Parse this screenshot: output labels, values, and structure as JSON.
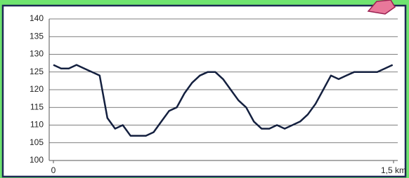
{
  "chart_data": {
    "type": "line",
    "x": [
      0,
      0.034,
      0.068,
      0.102,
      0.136,
      0.17,
      0.204,
      0.238,
      0.272,
      0.306,
      0.34,
      0.374,
      0.408,
      0.442,
      0.476,
      0.51,
      0.544,
      0.578,
      0.612,
      0.646,
      0.68,
      0.714,
      0.748,
      0.782,
      0.816,
      0.85,
      0.884,
      0.918,
      0.952,
      0.986,
      1.02,
      1.054,
      1.088,
      1.122,
      1.156,
      1.19,
      1.224,
      1.258,
      1.292,
      1.326,
      1.36,
      1.394,
      1.428,
      1.462,
      1.496
    ],
    "values": [
      127,
      126,
      126,
      127,
      126,
      125,
      124,
      112,
      109,
      110,
      107,
      107,
      107,
      108,
      111,
      114,
      115,
      119,
      122,
      124,
      125,
      125,
      123,
      120,
      117,
      115,
      111,
      109,
      109,
      110,
      109,
      110,
      111,
      113,
      116,
      120,
      124,
      123,
      124,
      125,
      125,
      125,
      125,
      126,
      127
    ],
    "color": "#14203f",
    "xlim": [
      0,
      1.5
    ],
    "xticks": [
      0,
      {
        "value": 1.5,
        "label": "1,5 km"
      }
    ],
    "ylim": [
      100,
      140
    ],
    "yticks": [
      100,
      105,
      110,
      115,
      120,
      125,
      130,
      135,
      140
    ],
    "grid": true
  }
}
